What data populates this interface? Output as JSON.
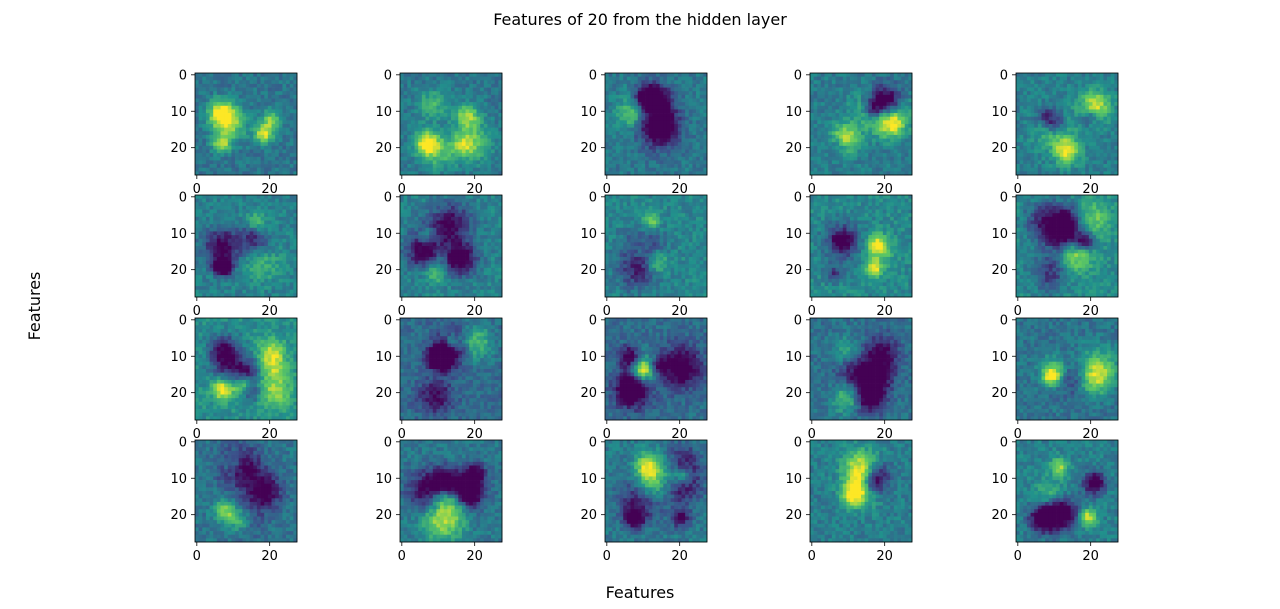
{
  "figure": {
    "suptitle": "Features of 20 from the hidden layer",
    "supxlabel": "Features",
    "supylabel": "Features"
  },
  "chart_data": {
    "type": "heatmap",
    "layout": {
      "rows": 4,
      "cols": 5
    },
    "panel_count": 20,
    "image_size": [
      28,
      28
    ],
    "colormap": "viridis",
    "colors": [
      "#440154",
      "#3b528b",
      "#21918c",
      "#5ec962",
      "#fde725"
    ],
    "xlim": [
      0,
      27
    ],
    "ylim": [
      27,
      0
    ],
    "x_tick_values": [
      0,
      20
    ],
    "y_tick_values": [
      0,
      10,
      20
    ],
    "x_tick_labels": [
      "0",
      "20"
    ],
    "y_tick_labels": [
      "0",
      "10",
      "20"
    ],
    "title": "Features of 20 from the hidden layer",
    "xlabel": "Features",
    "ylabel": "Features"
  }
}
